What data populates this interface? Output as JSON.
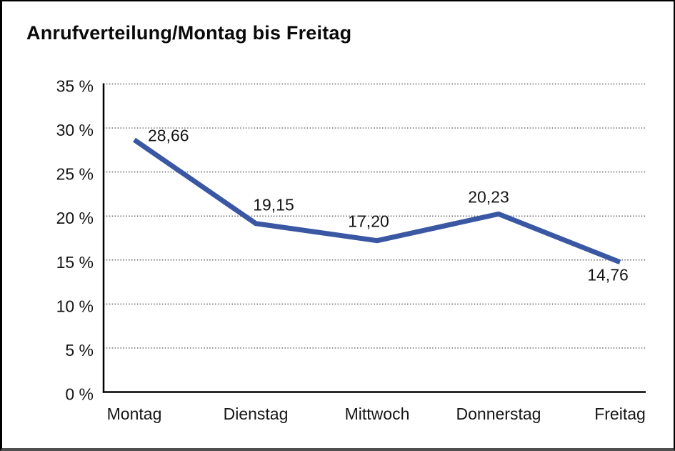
{
  "chart_data": {
    "type": "line",
    "title": "Anrufverteilung/Montag bis Freitag",
    "categories": [
      "Montag",
      "Dienstag",
      "Mittwoch",
      "Donnerstag",
      "Freitag"
    ],
    "values": [
      28.66,
      19.15,
      17.2,
      20.23,
      14.76
    ],
    "point_labels": [
      "28,66",
      "19,15",
      "17,20",
      "20,23",
      "14,76"
    ],
    "y_tick_labels": [
      "0 %",
      "5 %",
      "10 %",
      "15 %",
      "20 %",
      "25 %",
      "30 %",
      "35 %"
    ],
    "ylim": [
      0,
      35
    ],
    "y_step": 5,
    "xlabel": "",
    "ylabel": "",
    "legend": "none",
    "grid": "dotted-horizontal",
    "line_color": "#3a57a3",
    "axis_color": "#000000",
    "text_color": "#161616",
    "background_color": "#ffffff"
  }
}
